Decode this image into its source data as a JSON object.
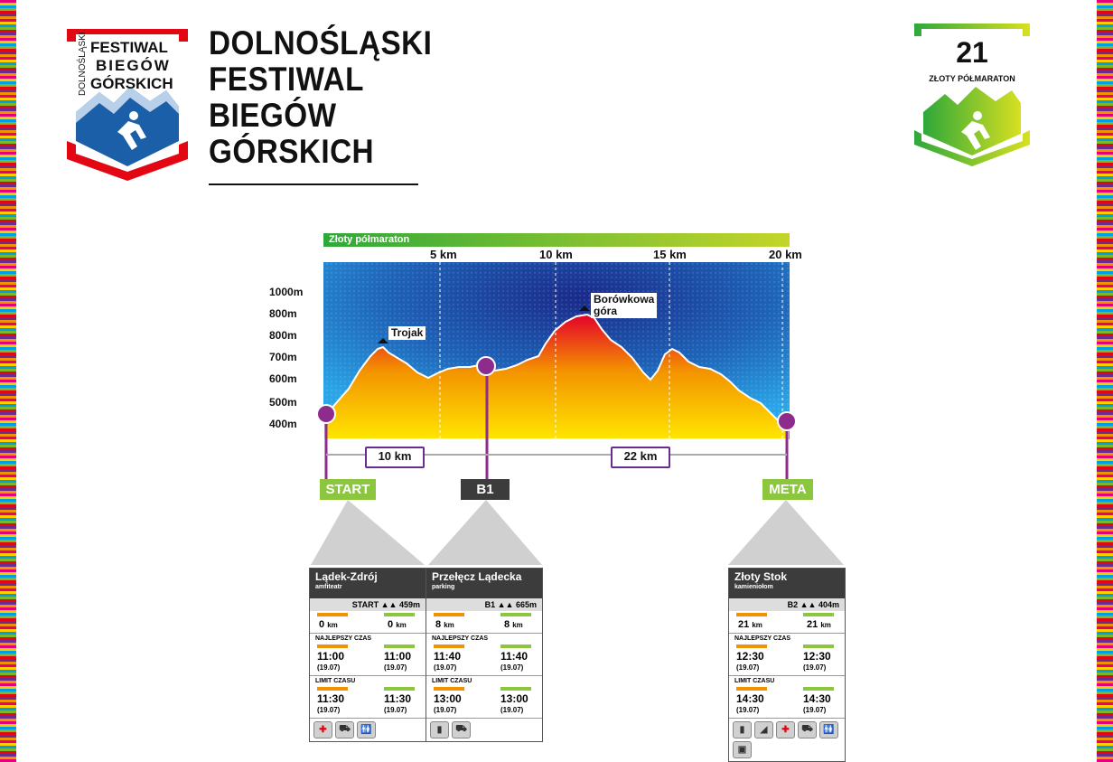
{
  "title": [
    "DOLNOŚLĄSKI",
    "FESTIWAL",
    "BIEGÓW",
    "GÓRSKICH"
  ],
  "logo_left": {
    "vertical": "DOLNOŚLĄSKI",
    "lines": [
      "FESTIWAL",
      "BIEGÓW",
      "GÓRSKICH"
    ]
  },
  "logo_right": {
    "number": "21",
    "label": "ZŁOTY PÓŁMARATON"
  },
  "profile": {
    "banner": "Złoty półmaraton",
    "km_labels": [
      "5 km",
      "10 km",
      "15 km",
      "20 km"
    ],
    "alt_labels": [
      "1000m",
      "800m",
      "800m",
      "700m",
      "600m",
      "500m",
      "400m"
    ],
    "peaks": [
      {
        "name": "Trojak"
      },
      {
        "name": "Borówkowa",
        "name2": "góra"
      }
    ],
    "distances": [
      "10 km",
      "22 km"
    ],
    "checkpoints": [
      "START",
      "B1",
      "META"
    ],
    "colors": {
      "start": "#8cc63f",
      "b1": "#3c3c3c",
      "meta": "#8cc63f",
      "marker": "#8e2c8e"
    }
  },
  "cards": [
    {
      "name": "Lądek-Zdrój",
      "sub": "amfiteatr",
      "code": "START",
      "alt": "459m",
      "km_left": "0",
      "km_right": "0",
      "km_unit": "km",
      "best_title": "NAJLEPSZY CZAS",
      "best_left": "11:00",
      "best_right": "11:00",
      "limit_title": "LIMIT CZASU",
      "limit_left": "11:30",
      "limit_right": "11:30",
      "date": "(19.07)",
      "icons": [
        "first-aid-icon",
        "car-icon",
        "toilet-icon"
      ]
    },
    {
      "name": "Przełęcz Lądecka",
      "sub": "parking",
      "code": "B1",
      "alt": "665m",
      "km_left": "8",
      "km_right": "8",
      "km_unit": "km",
      "best_title": "NAJLEPSZY CZAS",
      "best_left": "11:40",
      "best_right": "11:40",
      "limit_title": "LIMIT CZASU",
      "limit_left": "13:00",
      "limit_right": "13:00",
      "date": "(19.07)",
      "icons": [
        "drinks-icon",
        "car-icon"
      ]
    },
    {
      "name": "Złoty Stok",
      "sub": "kamieniołom",
      "code": "B2",
      "alt": "404m",
      "km_left": "21",
      "km_right": "21",
      "km_unit": "km",
      "best_title": "NAJLEPSZY CZAS",
      "best_left": "12:30",
      "best_right": "12:30",
      "limit_title": "LIMIT CZASU",
      "limit_left": "14:30",
      "limit_right": "14:30",
      "date": "(19.07)",
      "icons": [
        "drinks-icon",
        "medal-icon",
        "first-aid-icon",
        "car-icon",
        "toilet-icon",
        "bag-icon"
      ]
    }
  ]
}
